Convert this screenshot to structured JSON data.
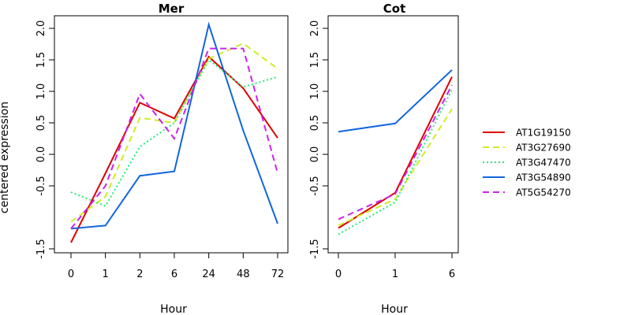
{
  "chart_data": [
    {
      "type": "line",
      "title": "Mer",
      "xlabel": "Hour",
      "ylabel": "centered expression",
      "categories": [
        "0",
        "1",
        "2",
        "6",
        "24",
        "48",
        "72"
      ],
      "yticks": [
        "-1.5",
        "-0.5",
        "0.0",
        "0.5",
        "1.0",
        "1.5",
        "2.0"
      ],
      "ylim": [
        -1.5,
        2.2
      ],
      "series": [
        {
          "name": "AT1G19150",
          "values": [
            -1.4,
            -0.3,
            0.82,
            0.57,
            1.55,
            1.05,
            0.26
          ]
        },
        {
          "name": "AT3G27690",
          "values": [
            -1.07,
            -0.67,
            0.58,
            0.5,
            1.52,
            1.76,
            1.36
          ]
        },
        {
          "name": "AT3G47470",
          "values": [
            -0.6,
            -0.82,
            0.12,
            0.5,
            1.5,
            1.07,
            1.23
          ]
        },
        {
          "name": "AT3G54890",
          "values": [
            -1.18,
            -1.13,
            -0.34,
            -0.27,
            2.06,
            0.38,
            -1.1
          ]
        },
        {
          "name": "AT5G54270",
          "values": [
            -1.18,
            -0.5,
            0.96,
            0.25,
            1.68,
            1.68,
            -0.3
          ]
        }
      ]
    },
    {
      "type": "line",
      "title": "Cot",
      "xlabel": "Hour",
      "ylabel": "",
      "categories": [
        "0",
        "1",
        "6"
      ],
      "yticks": [
        "-1.5",
        "-0.5",
        "0.0",
        "0.5",
        "1.0",
        "1.5",
        "2.0"
      ],
      "ylim": [
        -1.5,
        2.2
      ],
      "series": [
        {
          "name": "AT1G19150",
          "values": [
            -1.17,
            -0.61,
            1.23
          ]
        },
        {
          "name": "AT3G27690",
          "values": [
            -1.13,
            -0.71,
            0.72
          ]
        },
        {
          "name": "AT3G47470",
          "values": [
            -1.27,
            -0.76,
            1.03
          ]
        },
        {
          "name": "AT3G54890",
          "values": [
            0.36,
            0.49,
            1.34
          ]
        },
        {
          "name": "AT5G54270",
          "values": [
            -1.03,
            -0.63,
            1.1
          ]
        }
      ]
    }
  ],
  "legend": {
    "placement": "right",
    "entries": [
      {
        "name": "AT1G19150",
        "color": "#e00000",
        "dash": "solid"
      },
      {
        "name": "AT3G27690",
        "color": "#ccee22",
        "dash": "dashed"
      },
      {
        "name": "AT3G47470",
        "color": "#22ee77",
        "dash": "dotted"
      },
      {
        "name": "AT3G54890",
        "color": "#1166dd",
        "dash": "solid"
      },
      {
        "name": "AT5G54270",
        "color": "#cc22ee",
        "dash": "dashed"
      }
    ]
  }
}
